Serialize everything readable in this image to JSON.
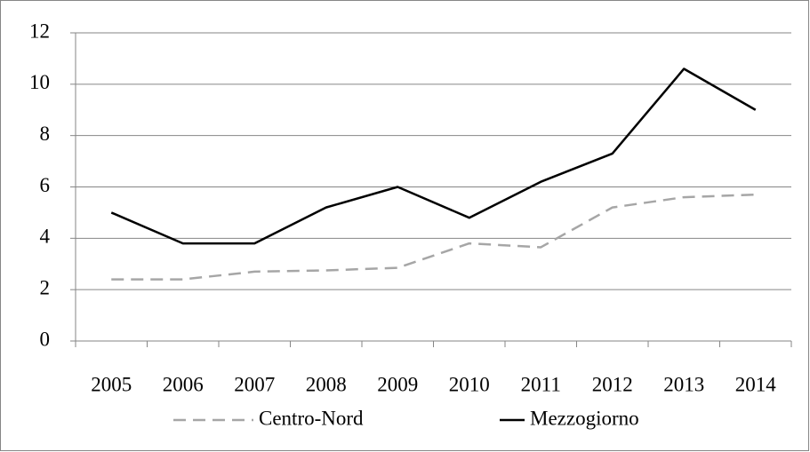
{
  "chart_data": {
    "type": "line",
    "categories": [
      "2005",
      "2006",
      "2007",
      "2008",
      "2009",
      "2010",
      "2011",
      "2012",
      "2013",
      "2014"
    ],
    "series": [
      {
        "name": "Centro-Nord",
        "color": "#a6a6a6",
        "dash": true,
        "values": [
          2.4,
          2.4,
          2.7,
          2.75,
          2.85,
          3.8,
          3.65,
          5.2,
          5.6,
          5.7
        ]
      },
      {
        "name": "Mezzogiorno",
        "color": "#000000",
        "dash": false,
        "values": [
          5.0,
          3.8,
          3.8,
          5.2,
          6.0,
          4.8,
          6.2,
          7.3,
          10.6,
          9.0
        ]
      }
    ],
    "ylim": [
      0,
      12
    ],
    "yticks": [
      0,
      2,
      4,
      6,
      8,
      10,
      12
    ],
    "grid": true,
    "legend": "bottom"
  }
}
